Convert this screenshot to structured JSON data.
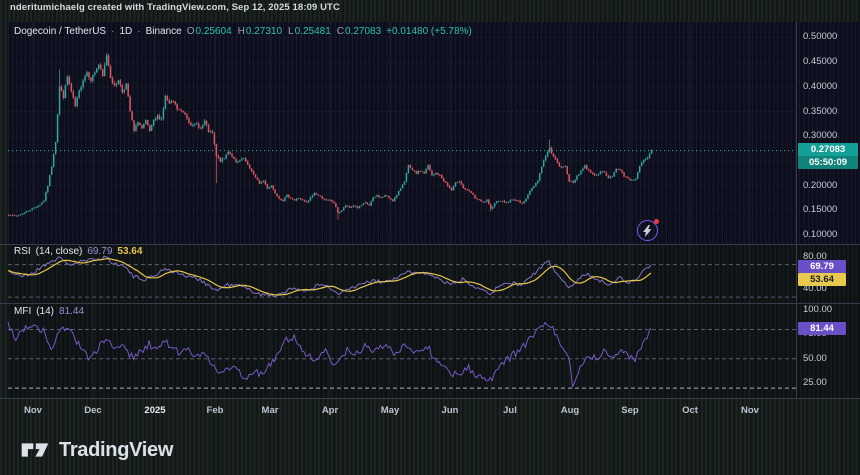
{
  "attribution": {
    "text": "nderitumichaelg created with TradingView.com, Sep 12, 2025 18:09 UTC"
  },
  "legend": {
    "symbol": "Dogecoin / TetherUS",
    "separator": "·",
    "interval": "1D",
    "exchange": "Binance",
    "ohlc": [
      {
        "label": "O",
        "value": "0.25604"
      },
      {
        "label": "H",
        "value": "0.27310"
      },
      {
        "label": "L",
        "value": "0.25481"
      },
      {
        "label": "C",
        "value": "0.27083"
      }
    ],
    "change": "+0.01480 (+5.78%)"
  },
  "rsi_pane": {
    "title": "RSI",
    "params": "(14, close)",
    "value": "69.79",
    "ma_value": "53.64"
  },
  "mfi_pane": {
    "title": "MFI",
    "params": "(14)",
    "value": "81.44"
  },
  "price_axis": {
    "ticks": [
      {
        "label": "0.50000",
        "value": 0.5
      },
      {
        "label": "0.45000",
        "value": 0.45
      },
      {
        "label": "0.40000",
        "value": 0.4
      },
      {
        "label": "0.35000",
        "value": 0.35
      },
      {
        "label": "0.30000",
        "value": 0.3
      },
      {
        "label": "0.20000",
        "value": 0.2
      },
      {
        "label": "0.15000",
        "value": 0.15
      },
      {
        "label": "0.10000",
        "value": 0.1
      }
    ],
    "price_badge": {
      "price": "0.27083",
      "countdown": "05:50:09"
    }
  },
  "rsi_axis_ticks": [
    {
      "label": "80.00",
      "value": 80
    },
    {
      "label": "40.00",
      "value": 40
    }
  ],
  "mfi_axis_ticks": [
    {
      "label": "100.00",
      "value": 100
    },
    {
      "label": "75.00",
      "value": 75
    },
    {
      "label": "50.00",
      "value": 50
    },
    {
      "label": "25.00",
      "value": 25
    }
  ],
  "time_axis": {
    "labels": [
      "Nov",
      "Dec",
      "2025",
      "Feb",
      "Mar",
      "Apr",
      "May",
      "Jun",
      "Jul",
      "Aug",
      "Sep",
      "Oct",
      "Nov"
    ]
  },
  "footer": {
    "brand": "TradingView"
  },
  "colors": {
    "up": "#2fa8a0",
    "down": "#e25562",
    "rsi": "#8f79d6",
    "rsi_ma": "#e5c449",
    "mfi": "#7e60d4",
    "price_line": "#2cbdb2",
    "accent_teal": "#14a096",
    "badge_purple": "#6a4fc8",
    "badge_yellow": "#e8c94e",
    "grid_dot": "rgba(125,135,175,0.20)",
    "month_grid": "rgba(160,170,200,0.10)",
    "band_dash": "#5a5f6b",
    "band_dash_bright": "#aab0bc",
    "separator": "#363c49"
  },
  "chart_data": [
    {
      "type": "candlestick",
      "title": "Dogecoin / TetherUS, 1D, Binance",
      "ohlc_last": {
        "open": 0.25604,
        "high": 0.2731,
        "low": 0.25481,
        "close": 0.27083,
        "change": 0.0148,
        "change_pct": 5.78
      },
      "y_axis": {
        "ticks": [
          0.5,
          0.45,
          0.4,
          0.35,
          0.3,
          0.25,
          0.2,
          0.15,
          0.1
        ],
        "visible_range": [
          0.085,
          0.52
        ],
        "last_price": 0.27083,
        "countdown": "05:50:09"
      },
      "x_axis": {
        "labels": [
          "Nov",
          "Dec",
          "2025",
          "Feb",
          "Mar",
          "Apr",
          "May",
          "Jun",
          "Jul",
          "Aug",
          "Sep",
          "Oct",
          "Nov"
        ],
        "unit": "daily bars, ~11 months visible"
      },
      "close_anchors": [
        [
          0,
          0.141
        ],
        [
          4,
          0.138
        ],
        [
          8,
          0.145
        ],
        [
          13,
          0.155
        ],
        [
          16,
          0.162
        ],
        [
          18,
          0.17
        ],
        [
          20,
          0.2
        ],
        [
          22,
          0.24
        ],
        [
          24,
          0.29
        ],
        [
          26,
          0.4
        ],
        [
          28,
          0.38
        ],
        [
          30,
          0.42
        ],
        [
          32,
          0.39
        ],
        [
          34,
          0.36
        ],
        [
          36,
          0.39
        ],
        [
          38,
          0.415
        ],
        [
          40,
          0.43
        ],
        [
          42,
          0.415
        ],
        [
          44,
          0.43
        ],
        [
          46,
          0.445
        ],
        [
          48,
          0.42
        ],
        [
          50,
          0.465
        ],
        [
          52,
          0.42
        ],
        [
          54,
          0.4
        ],
        [
          56,
          0.415
        ],
        [
          58,
          0.39
        ],
        [
          60,
          0.405
        ],
        [
          62,
          0.35
        ],
        [
          64,
          0.31
        ],
        [
          66,
          0.33
        ],
        [
          68,
          0.315
        ],
        [
          70,
          0.33
        ],
        [
          72,
          0.31
        ],
        [
          74,
          0.33
        ],
        [
          76,
          0.34
        ],
        [
          78,
          0.335
        ],
        [
          80,
          0.38
        ],
        [
          82,
          0.365
        ],
        [
          84,
          0.37
        ],
        [
          86,
          0.355
        ],
        [
          88,
          0.35
        ],
        [
          90,
          0.345
        ],
        [
          92,
          0.33
        ],
        [
          94,
          0.32
        ],
        [
          96,
          0.325
        ],
        [
          98,
          0.315
        ],
        [
          100,
          0.33
        ],
        [
          102,
          0.31
        ],
        [
          104,
          0.305
        ],
        [
          106,
          0.26
        ],
        [
          108,
          0.25
        ],
        [
          110,
          0.255
        ],
        [
          112,
          0.27
        ],
        [
          114,
          0.26
        ],
        [
          116,
          0.245
        ],
        [
          118,
          0.25
        ],
        [
          120,
          0.255
        ],
        [
          122,
          0.24
        ],
        [
          124,
          0.23
        ],
        [
          126,
          0.215
        ],
        [
          128,
          0.205
        ],
        [
          130,
          0.21
        ],
        [
          132,
          0.195
        ],
        [
          134,
          0.2
        ],
        [
          136,
          0.185
        ],
        [
          138,
          0.175
        ],
        [
          140,
          0.17
        ],
        [
          142,
          0.18
        ],
        [
          144,
          0.175
        ],
        [
          146,
          0.17
        ],
        [
          148,
          0.175
        ],
        [
          150,
          0.17
        ],
        [
          152,
          0.165
        ],
        [
          154,
          0.175
        ],
        [
          156,
          0.185
        ],
        [
          158,
          0.18
        ],
        [
          160,
          0.175
        ],
        [
          162,
          0.17
        ],
        [
          164,
          0.17
        ],
        [
          166,
          0.165
        ],
        [
          168,
          0.145
        ],
        [
          170,
          0.15
        ],
        [
          172,
          0.16
        ],
        [
          174,
          0.155
        ],
        [
          176,
          0.16
        ],
        [
          178,
          0.155
        ],
        [
          180,
          0.16
        ],
        [
          182,
          0.165
        ],
        [
          184,
          0.16
        ],
        [
          186,
          0.175
        ],
        [
          188,
          0.18
        ],
        [
          190,
          0.175
        ],
        [
          192,
          0.18
        ],
        [
          194,
          0.175
        ],
        [
          196,
          0.17
        ],
        [
          198,
          0.18
        ],
        [
          200,
          0.195
        ],
        [
          202,
          0.21
        ],
        [
          204,
          0.24
        ],
        [
          206,
          0.23
        ],
        [
          208,
          0.225
        ],
        [
          210,
          0.23
        ],
        [
          212,
          0.225
        ],
        [
          214,
          0.24
        ],
        [
          216,
          0.22
        ],
        [
          218,
          0.225
        ],
        [
          220,
          0.22
        ],
        [
          222,
          0.21
        ],
        [
          224,
          0.2
        ],
        [
          226,
          0.19
        ],
        [
          228,
          0.205
        ],
        [
          230,
          0.21
        ],
        [
          232,
          0.195
        ],
        [
          234,
          0.19
        ],
        [
          236,
          0.185
        ],
        [
          238,
          0.175
        ],
        [
          240,
          0.17
        ],
        [
          242,
          0.165
        ],
        [
          244,
          0.17
        ],
        [
          246,
          0.152
        ],
        [
          248,
          0.165
        ],
        [
          250,
          0.17
        ],
        [
          252,
          0.168
        ],
        [
          254,
          0.165
        ],
        [
          256,
          0.17
        ],
        [
          258,
          0.172
        ],
        [
          260,
          0.168
        ],
        [
          262,
          0.165
        ],
        [
          264,
          0.172
        ],
        [
          266,
          0.19
        ],
        [
          268,
          0.2
        ],
        [
          270,
          0.21
        ],
        [
          272,
          0.24
        ],
        [
          274,
          0.26
        ],
        [
          276,
          0.275
        ],
        [
          278,
          0.26
        ],
        [
          280,
          0.245
        ],
        [
          282,
          0.235
        ],
        [
          284,
          0.24
        ],
        [
          286,
          0.21
        ],
        [
          288,
          0.205
        ],
        [
          290,
          0.22
        ],
        [
          292,
          0.23
        ],
        [
          294,
          0.24
        ],
        [
          296,
          0.23
        ],
        [
          298,
          0.225
        ],
        [
          300,
          0.22
        ],
        [
          302,
          0.23
        ],
        [
          304,
          0.225
        ],
        [
          306,
          0.215
        ],
        [
          308,
          0.22
        ],
        [
          310,
          0.235
        ],
        [
          312,
          0.23
        ],
        [
          314,
          0.22
        ],
        [
          316,
          0.215
        ],
        [
          318,
          0.21
        ],
        [
          320,
          0.215
        ],
        [
          322,
          0.24
        ],
        [
          324,
          0.25
        ],
        [
          326,
          0.255
        ],
        [
          328,
          0.27083
        ]
      ],
      "wick_overrides": [
        {
          "day": 26,
          "high": 0.435
        },
        {
          "day": 50,
          "high": 0.468
        },
        {
          "day": 106,
          "low": 0.205
        },
        {
          "day": 168,
          "low": 0.131
        },
        {
          "day": 246,
          "low": 0.148
        },
        {
          "day": 276,
          "high": 0.293
        }
      ]
    },
    {
      "type": "line",
      "name": "RSI (14, close)",
      "last": 69.79,
      "ma_last": 53.64,
      "levels": [
        70,
        30
      ],
      "axis_ticks": [
        80,
        40
      ],
      "range": [
        0,
        100
      ],
      "anchors": [
        [
          0,
          63
        ],
        [
          6,
          55
        ],
        [
          13,
          60
        ],
        [
          20,
          72
        ],
        [
          26,
          78
        ],
        [
          32,
          70
        ],
        [
          38,
          74
        ],
        [
          44,
          76
        ],
        [
          50,
          80
        ],
        [
          54,
          70
        ],
        [
          58,
          72
        ],
        [
          64,
          55
        ],
        [
          70,
          52
        ],
        [
          76,
          58
        ],
        [
          80,
          66
        ],
        [
          86,
          60
        ],
        [
          92,
          55
        ],
        [
          98,
          52
        ],
        [
          106,
          38
        ],
        [
          112,
          45
        ],
        [
          118,
          44
        ],
        [
          124,
          38
        ],
        [
          130,
          33
        ],
        [
          136,
          32
        ],
        [
          142,
          38
        ],
        [
          148,
          40
        ],
        [
          154,
          38
        ],
        [
          158,
          45
        ],
        [
          164,
          42
        ],
        [
          168,
          33
        ],
        [
          174,
          40
        ],
        [
          180,
          45
        ],
        [
          186,
          50
        ],
        [
          192,
          48
        ],
        [
          200,
          55
        ],
        [
          204,
          62
        ],
        [
          210,
          58
        ],
        [
          214,
          60
        ],
        [
          220,
          52
        ],
        [
          226,
          45
        ],
        [
          232,
          52
        ],
        [
          238,
          44
        ],
        [
          244,
          38
        ],
        [
          246,
          35
        ],
        [
          252,
          45
        ],
        [
          256,
          48
        ],
        [
          262,
          45
        ],
        [
          268,
          58
        ],
        [
          272,
          66
        ],
        [
          276,
          74
        ],
        [
          280,
          58
        ],
        [
          286,
          42
        ],
        [
          292,
          55
        ],
        [
          296,
          58
        ],
        [
          302,
          50
        ],
        [
          306,
          45
        ],
        [
          312,
          55
        ],
        [
          316,
          48
        ],
        [
          320,
          50
        ],
        [
          324,
          62
        ],
        [
          328,
          69.79
        ]
      ],
      "ma_window": 10
    },
    {
      "type": "line",
      "name": "MFI (14)",
      "last": 81.44,
      "levels": [
        80,
        50,
        20
      ],
      "axis_ticks": [
        100,
        75,
        50,
        25
      ],
      "range": [
        0,
        100
      ],
      "anchors": [
        [
          0,
          85
        ],
        [
          4,
          72
        ],
        [
          8,
          80
        ],
        [
          13,
          86
        ],
        [
          18,
          78
        ],
        [
          22,
          62
        ],
        [
          26,
          75
        ],
        [
          30,
          85
        ],
        [
          34,
          70
        ],
        [
          38,
          62
        ],
        [
          42,
          48
        ],
        [
          46,
          60
        ],
        [
          50,
          72
        ],
        [
          54,
          60
        ],
        [
          58,
          65
        ],
        [
          64,
          50
        ],
        [
          68,
          58
        ],
        [
          72,
          65
        ],
        [
          76,
          60
        ],
        [
          80,
          68
        ],
        [
          84,
          60
        ],
        [
          88,
          55
        ],
        [
          92,
          60
        ],
        [
          96,
          52
        ],
        [
          100,
          58
        ],
        [
          106,
          40
        ],
        [
          110,
          35
        ],
        [
          114,
          42
        ],
        [
          118,
          36
        ],
        [
          122,
          30
        ],
        [
          126,
          38
        ],
        [
          130,
          32
        ],
        [
          134,
          45
        ],
        [
          138,
          55
        ],
        [
          142,
          70
        ],
        [
          146,
          72
        ],
        [
          150,
          60
        ],
        [
          154,
          52
        ],
        [
          158,
          48
        ],
        [
          162,
          58
        ],
        [
          166,
          45
        ],
        [
          170,
          52
        ],
        [
          174,
          60
        ],
        [
          178,
          55
        ],
        [
          182,
          62
        ],
        [
          186,
          58
        ],
        [
          190,
          65
        ],
        [
          194,
          60
        ],
        [
          198,
          55
        ],
        [
          202,
          65
        ],
        [
          206,
          60
        ],
        [
          210,
          55
        ],
        [
          214,
          62
        ],
        [
          218,
          50
        ],
        [
          222,
          42
        ],
        [
          226,
          35
        ],
        [
          230,
          32
        ],
        [
          234,
          42
        ],
        [
          238,
          35
        ],
        [
          242,
          30
        ],
        [
          246,
          28
        ],
        [
          250,
          40
        ],
        [
          254,
          48
        ],
        [
          258,
          55
        ],
        [
          262,
          60
        ],
        [
          266,
          70
        ],
        [
          270,
          78
        ],
        [
          274,
          85
        ],
        [
          278,
          80
        ],
        [
          282,
          65
        ],
        [
          286,
          50
        ],
        [
          288,
          25
        ],
        [
          292,
          40
        ],
        [
          296,
          55
        ],
        [
          300,
          50
        ],
        [
          304,
          58
        ],
        [
          308,
          52
        ],
        [
          312,
          60
        ],
        [
          316,
          55
        ],
        [
          320,
          50
        ],
        [
          324,
          65
        ],
        [
          328,
          81.44
        ]
      ]
    }
  ]
}
